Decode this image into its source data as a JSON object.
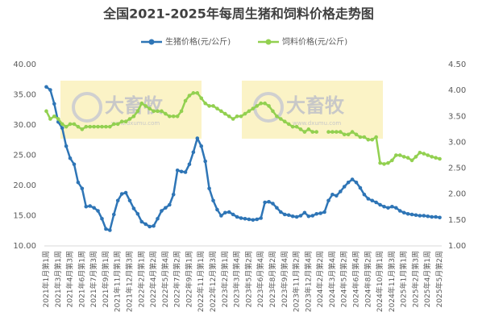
{
  "chart_data": {
    "type": "line",
    "title": "全国2021-2025年每周生猪和饲料价格走势图",
    "watermark": "大畜牧",
    "watermark_url": "www.dxumu.com",
    "categories": [
      "2021年1月第1周",
      null,
      null,
      "2021年3月第1周",
      null,
      null,
      "2021年4月第3周",
      null,
      null,
      "2021年6月第1周",
      null,
      null,
      "2021年7月第3周",
      null,
      null,
      "2021年9月第1周",
      null,
      null,
      "2021年11月第1周",
      null,
      null,
      "2021年12月第3周",
      null,
      null,
      "2022年2月第1周",
      null,
      null,
      "2022年4月第2周",
      null,
      null,
      "2022年5月第4周",
      null,
      null,
      "2022年7月第2周",
      null,
      null,
      "2022年9月第1周",
      null,
      null,
      "2022年11月第1周",
      null,
      null,
      "2022年12月第3周",
      null,
      null,
      "2023年2月第1周",
      null,
      null,
      "2023年3月第4周",
      null,
      null,
      "2023年5月第2周",
      null,
      null,
      "2023年6月第4周",
      null,
      null,
      "2023年8月第2周",
      null,
      null,
      "2023年9月第4周",
      null,
      null,
      "2023年11月第2周",
      null,
      null,
      "2023年12月第4周",
      null,
      null,
      "2024年2月第2周",
      null,
      null,
      "2024年3月第4周",
      null,
      null,
      "2024年5月第2周",
      null,
      null,
      "2024年6月第4周",
      null,
      null,
      "2024年8月第2周",
      null,
      null,
      "2024年10月第1周",
      null,
      null,
      "2024年11月第3周",
      null,
      null,
      "2025年1月第1周",
      null,
      null,
      "2025年2月第3周",
      null,
      null,
      "2025年4月第1周",
      null,
      null,
      "2025年5月第2周"
    ],
    "series": [
      {
        "name": "生猪价格(元/公斤)",
        "color": "#2e75b6",
        "axis": "y",
        "values": [
          36.3,
          35.8,
          33.5,
          30.5,
          29.5,
          26.5,
          24.5,
          23.5,
          20.5,
          19.5,
          16.5,
          16.6,
          16.3,
          15.8,
          14.5,
          12.8,
          12.6,
          15.2,
          17.5,
          18.6,
          18.8,
          17.5,
          16.2,
          15.3,
          14,
          13.6,
          13.2,
          13.3,
          14.5,
          15.8,
          16.3,
          16.8,
          18.5,
          22.5,
          22.3,
          22.2,
          23.5,
          25.5,
          27.8,
          26.5,
          24,
          19.5,
          17.5,
          16,
          15,
          15.5,
          15.6,
          15.2,
          14.8,
          14.6,
          14.5,
          14.4,
          14.3,
          14.4,
          14.6,
          17.2,
          17.3,
          17,
          16.3,
          15.6,
          15.2,
          15.1,
          14.9,
          14.8,
          15,
          15.5,
          14.9,
          15,
          15.3,
          15.4,
          15.6,
          17.5,
          18.5,
          18.3,
          19,
          19.8,
          20.5,
          21,
          20.5,
          19.6,
          18.5,
          17.8,
          17.5,
          17.2,
          16.8,
          16.5,
          16.3,
          16.5,
          16.3,
          15.8,
          15.5,
          15.3,
          15.2,
          15.1,
          15,
          15,
          14.9,
          14.8,
          14.8,
          14.7
        ]
      },
      {
        "name": "饲料价格(元/公斤)",
        "color": "#92d050",
        "axis": "y2",
        "values": [
          3.6,
          3.45,
          3.5,
          3.45,
          3.35,
          3.3,
          3.35,
          3.35,
          3.3,
          3.25,
          3.3,
          3.3,
          3.3,
          3.3,
          3.3,
          3.3,
          3.3,
          3.35,
          3.35,
          3.4,
          3.4,
          3.45,
          3.5,
          3.6,
          3.75,
          3.7,
          3.65,
          3.6,
          3.6,
          3.6,
          3.55,
          3.5,
          3.5,
          3.5,
          3.6,
          3.8,
          3.9,
          3.95,
          3.95,
          3.85,
          3.75,
          3.7,
          3.7,
          3.65,
          3.6,
          3.55,
          3.5,
          3.45,
          3.5,
          3.5,
          3.55,
          3.6,
          3.65,
          3.7,
          3.75,
          3.75,
          3.7,
          3.6,
          3.5,
          3.45,
          3.4,
          3.35,
          3.3,
          3.3,
          3.25,
          3.2,
          3.25,
          3.2,
          3.2,
          null,
          null,
          3.2,
          3.2,
          3.2,
          3.2,
          3.15,
          3.15,
          3.2,
          3.15,
          3.1,
          3.1,
          3.05,
          3.05,
          3.1,
          2.6,
          2.58,
          2.6,
          2.65,
          2.75,
          2.75,
          2.72,
          2.7,
          2.65,
          2.72,
          2.8,
          2.78,
          2.75,
          2.72,
          2.7,
          2.68
        ]
      }
    ],
    "ylim": [
      10,
      40
    ],
    "yticks": [
      {
        "value": 10,
        "label": "10.00"
      },
      {
        "value": 15,
        "label": "15.00"
      },
      {
        "value": 20,
        "label": "20.00"
      },
      {
        "value": 25,
        "label": "25.00"
      },
      {
        "value": 30,
        "label": "30.00"
      },
      {
        "value": 35,
        "label": "35.00"
      },
      {
        "value": 40,
        "label": "40.00"
      }
    ],
    "y2lim": [
      1,
      4.5
    ],
    "y2ticks": [
      {
        "value": 1,
        "label": "1.00"
      },
      {
        "value": 1.5,
        "label": "1.50"
      },
      {
        "value": 2,
        "label": "2.00"
      },
      {
        "value": 2.5,
        "label": "2.50"
      },
      {
        "value": 3,
        "label": "3.00"
      },
      {
        "value": 3.5,
        "label": "3.50"
      },
      {
        "value": 4,
        "label": "4.00"
      },
      {
        "value": 4.5,
        "label": "4.50"
      }
    ],
    "grid": false,
    "legend": "top"
  }
}
